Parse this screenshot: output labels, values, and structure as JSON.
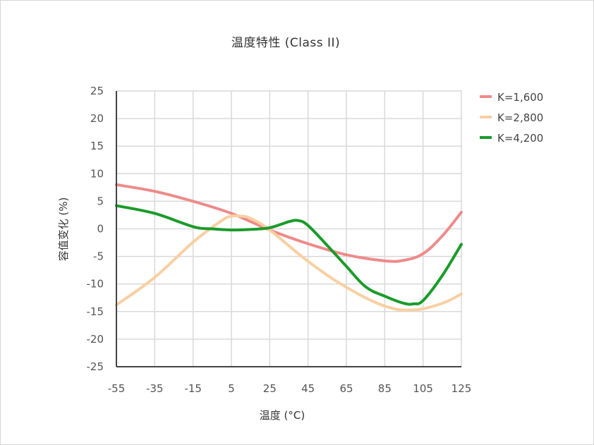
{
  "chart_data": {
    "type": "line",
    "title": "温度特性 (Class II)",
    "xlabel": "温度 (°C)",
    "ylabel": "容值变化 (%)",
    "xlim": [
      -55,
      125
    ],
    "ylim": [
      -25,
      25
    ],
    "xticks": [
      -55,
      -35,
      -15,
      5,
      25,
      45,
      65,
      85,
      105,
      125
    ],
    "yticks": [
      25,
      20,
      15,
      10,
      5,
      0,
      -5,
      -10,
      -15,
      -20,
      -25
    ],
    "grid": true,
    "legend_position": "top-right",
    "series": [
      {
        "name": "K=1,600",
        "color": "#ef8a8a",
        "x": [
          -55,
          -35,
          -15,
          5,
          25,
          45,
          65,
          85,
          95,
          105,
          115,
          125
        ],
        "y": [
          8,
          6.8,
          5,
          2.8,
          -0.2,
          -2.7,
          -4.7,
          -5.8,
          -5.7,
          -4.5,
          -1.3,
          3
        ]
      },
      {
        "name": "K=2,800",
        "color": "#f9cfa2",
        "x": [
          -55,
          -35,
          -15,
          0,
          5,
          10,
          15,
          25,
          45,
          65,
          85,
          100,
          115,
          125
        ],
        "y": [
          -13.8,
          -8.8,
          -2.4,
          1.5,
          2.3,
          2.3,
          1.9,
          -0.2,
          -5.9,
          -10.6,
          -14,
          -14.7,
          -13.5,
          -11.8
        ]
      },
      {
        "name": "K=4,200",
        "color": "#1a9b2a",
        "x": [
          -55,
          -35,
          -15,
          -5,
          5,
          15,
          25,
          35,
          40,
          45,
          55,
          65,
          75,
          85,
          95,
          100,
          105,
          115,
          125
        ],
        "y": [
          4.2,
          2.8,
          0.4,
          0,
          -0.2,
          -0.1,
          0.2,
          1.3,
          1.5,
          0.6,
          -3,
          -6.8,
          -10.5,
          -12.2,
          -13.5,
          -13.6,
          -13,
          -8.5,
          -2.8
        ]
      }
    ]
  }
}
